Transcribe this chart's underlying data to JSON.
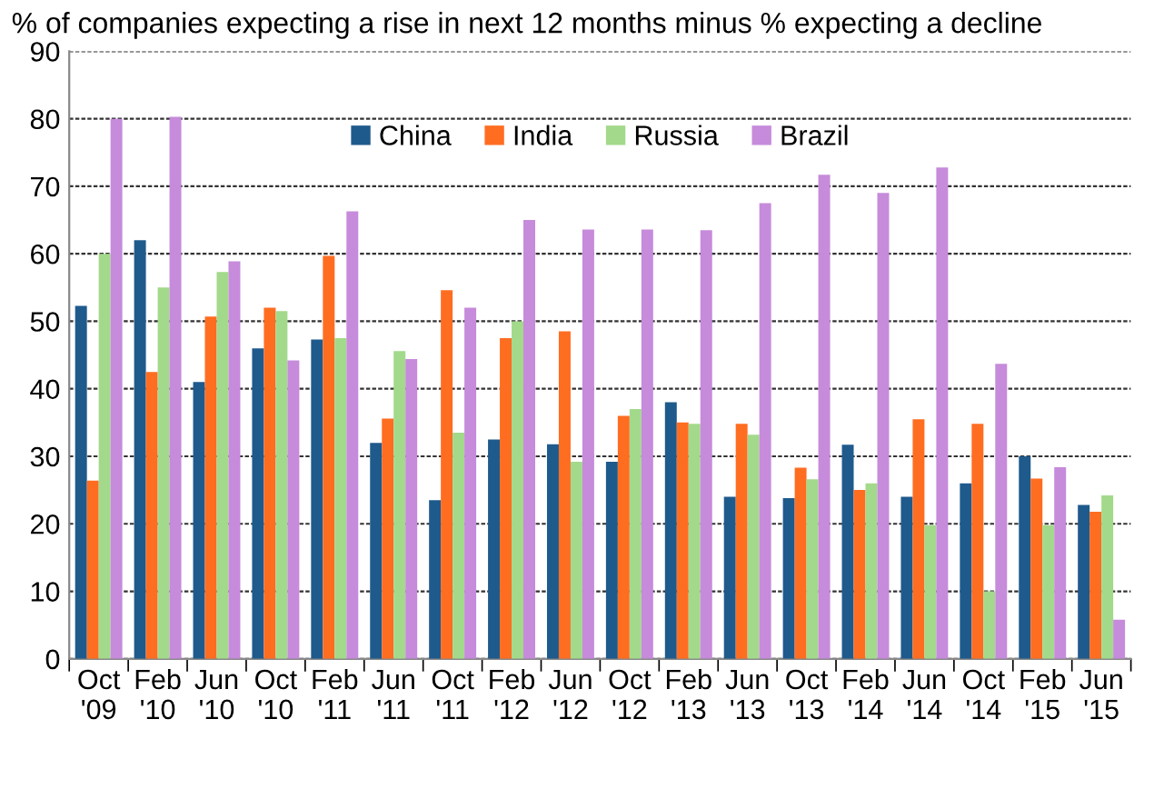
{
  "chart_data": {
    "type": "bar",
    "title": "% of companies expecting a rise in next 12 months minus % expecting a decline",
    "categories": [
      "Oct\n'09",
      "Feb\n'10",
      "Jun\n'10",
      "Oct\n'10",
      "Feb\n'11",
      "Jun\n'11",
      "Oct\n'11",
      "Feb\n'12",
      "Jun\n'12",
      "Oct\n'12",
      "Feb\n'13",
      "Jun\n'13",
      "Oct\n'13",
      "Feb\n'14",
      "Jun\n'14",
      "Oct\n'14",
      "Feb\n'15",
      "Jun\n'15"
    ],
    "series": [
      {
        "name": "China",
        "color": "#1f5a8c",
        "values": [
          52.3,
          62,
          41,
          46,
          47.3,
          32,
          23.5,
          32.5,
          31.8,
          29.2,
          38,
          24,
          23.8,
          31.7,
          24,
          26,
          30,
          22.8
        ]
      },
      {
        "name": "India",
        "color": "#ff6d21",
        "values": [
          26.4,
          42.5,
          50.7,
          52,
          59.7,
          35.6,
          54.6,
          47.5,
          48.5,
          36,
          35,
          34.8,
          28.3,
          25,
          35.5,
          34.8,
          26.7,
          21.8
        ]
      },
      {
        "name": "Russia",
        "color": "#a3d98b",
        "values": [
          60,
          55,
          57.3,
          51.5,
          47.5,
          45.6,
          33.5,
          50,
          29.2,
          37,
          34.8,
          33.2,
          26.6,
          26,
          19.8,
          10,
          19.8,
          24.2
        ]
      },
      {
        "name": "Brazil",
        "color": "#c68bdb",
        "values": [
          80,
          80.3,
          58.9,
          44.2,
          66.3,
          44.4,
          52,
          65,
          63.6,
          63.6,
          63.5,
          67.5,
          71.7,
          69,
          72.8,
          43.7,
          28.4,
          5.8
        ]
      }
    ],
    "ylim": [
      0,
      90
    ],
    "yticks": [
      0,
      10,
      20,
      30,
      40,
      50,
      60,
      70,
      80,
      90
    ],
    "grid": "y",
    "legend": "top"
  }
}
